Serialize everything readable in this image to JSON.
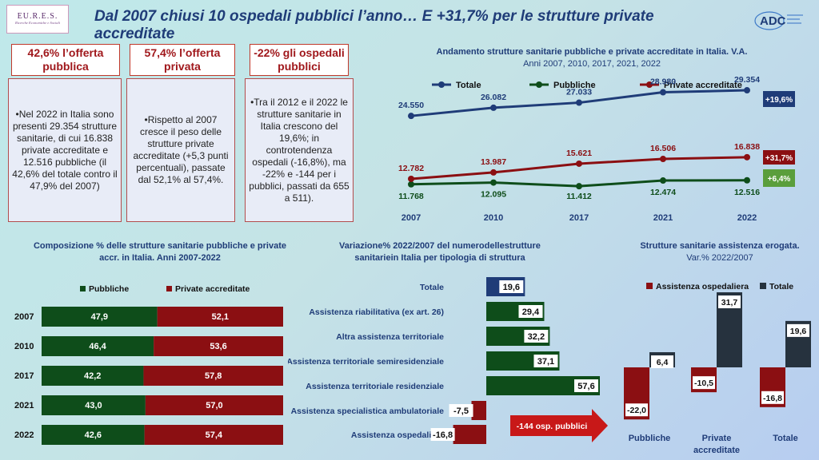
{
  "header": {
    "logo_text": "EU.R.E.S.",
    "logo_sub": "Ricerche Economiche e Sociali",
    "title": "Dal 2007 chiusi 10 ospedali pubblici l’anno… E +31,7% per le strutture private accreditate",
    "adc_logo": "ADC"
  },
  "boxes": [
    {
      "heading": "42,6% l’offerta pubblica",
      "text": "•Nel 2022 in Italia sono presenti 29.354 strutture sanitarie, di cui 16.838 private accreditate e 12.516 pubbliche (il 42,6% del totale contro il 47,9% del 2007)"
    },
    {
      "heading": "57,4% l’offerta privata",
      "text": "•Rispetto al 2007 cresce il peso delle strutture private accreditate (+5,3 punti percentuali), passate dal 52,1% al 57,4%."
    },
    {
      "heading": "-22% gli ospedali pubblici",
      "text": "•Tra il 2012 e il 2022 le strutture sanitarie in Italia crescono del 19,6%; in controtendenza ospedali (-16,8%), ma -22% e -144 per i pubblici, passati da 655 a 511)."
    }
  ],
  "colors": {
    "totale": "#1f3c78",
    "pubbliche": "#0e4d1a",
    "private": "#8b0f12",
    "green_bar": "#5a9e3c"
  },
  "chart_data": [
    {
      "type": "line",
      "title": "Andamento strutture sanitarie pubbliche e private accreditate in Italia. V.A.",
      "subtitle": "Anni 2007, 2010, 2017, 2021, 2022",
      "categories": [
        "2007",
        "2010",
        "2017",
        "2021",
        "2022"
      ],
      "series": [
        {
          "name": "Totale",
          "values": [
            24550,
            26082,
            27033,
            28980,
            29354
          ],
          "labels": [
            "24.550",
            "26.082",
            "27.033",
            "28.980",
            "29.354"
          ],
          "color": "#1f3c78"
        },
        {
          "name": "Pubbliche",
          "values": [
            11768,
            12095,
            11412,
            12474,
            12516
          ],
          "labels": [
            "11.768",
            "12.095",
            "11.412",
            "12.474",
            "12.516"
          ],
          "color": "#0e4d1a"
        },
        {
          "name": "Private accreditate",
          "values": [
            12782,
            13987,
            15621,
            16506,
            16838
          ],
          "labels": [
            "12.782",
            "13.987",
            "15.621",
            "16.506",
            "16.838"
          ],
          "color": "#8b0f12"
        }
      ],
      "badges": [
        "+19,6%",
        "+31,7%",
        "+6,4%"
      ],
      "legend": "top"
    },
    {
      "type": "bar",
      "stacked": true,
      "orientation": "horizontal",
      "title": "Composizione % delle strutture sanitarie pubbliche e private accr. in Italia. Anni 2007-2022",
      "categories": [
        "2007",
        "2010",
        "2017",
        "2021",
        "2022"
      ],
      "series": [
        {
          "name": "Pubbliche",
          "values": [
            47.9,
            46.4,
            42.2,
            43.0,
            42.6
          ],
          "labels": [
            "47,9",
            "46,4",
            "42,2",
            "43,0",
            "42,6"
          ]
        },
        {
          "name": "Private accreditate",
          "values": [
            52.1,
            53.6,
            57.8,
            57.0,
            57.4
          ],
          "labels": [
            "52,1",
            "53,6",
            "57,8",
            "57,0",
            "57,4"
          ]
        }
      ],
      "legend": "top"
    },
    {
      "type": "bar",
      "orientation": "horizontal",
      "title": "Variazione% 2022/2007 del numerodellestrutture sanitariein Italia per tipologia di struttura",
      "categories": [
        "Totale",
        "Assistenza riabilitativa (ex art. 26)",
        "Altra assistenza territoriale",
        "Assistenza territoriale semiresidenziale",
        "Assistenza territoriale residenziale",
        "Assistenza specialistica ambulatoriale",
        "Assistenza ospedaliera"
      ],
      "values": [
        19.6,
        29.4,
        32.2,
        37.1,
        57.6,
        -7.5,
        -16.8
      ],
      "labels": [
        "19,6",
        "29,4",
        "32,2",
        "37,1",
        "57,6",
        "-7,5",
        "-16,8"
      ],
      "annotation": "-144 osp. pubblici"
    },
    {
      "type": "bar",
      "title": "Strutture sanitarie assistenza erogata.",
      "title_suffix": "Var.% 2022/2007",
      "categories": [
        "Pubbliche",
        "Private accreditate",
        "Totale"
      ],
      "series": [
        {
          "name": "Assistenza ospedaliera",
          "values": [
            -22.0,
            -10.5,
            -16.8
          ],
          "labels": [
            "-22,0",
            "-10,5",
            "-16,8"
          ]
        },
        {
          "name": "Totale",
          "values": [
            6.4,
            31.7,
            19.6
          ],
          "labels": [
            "6,4",
            "31,7",
            "19,6"
          ]
        }
      ],
      "legend": "top"
    }
  ]
}
